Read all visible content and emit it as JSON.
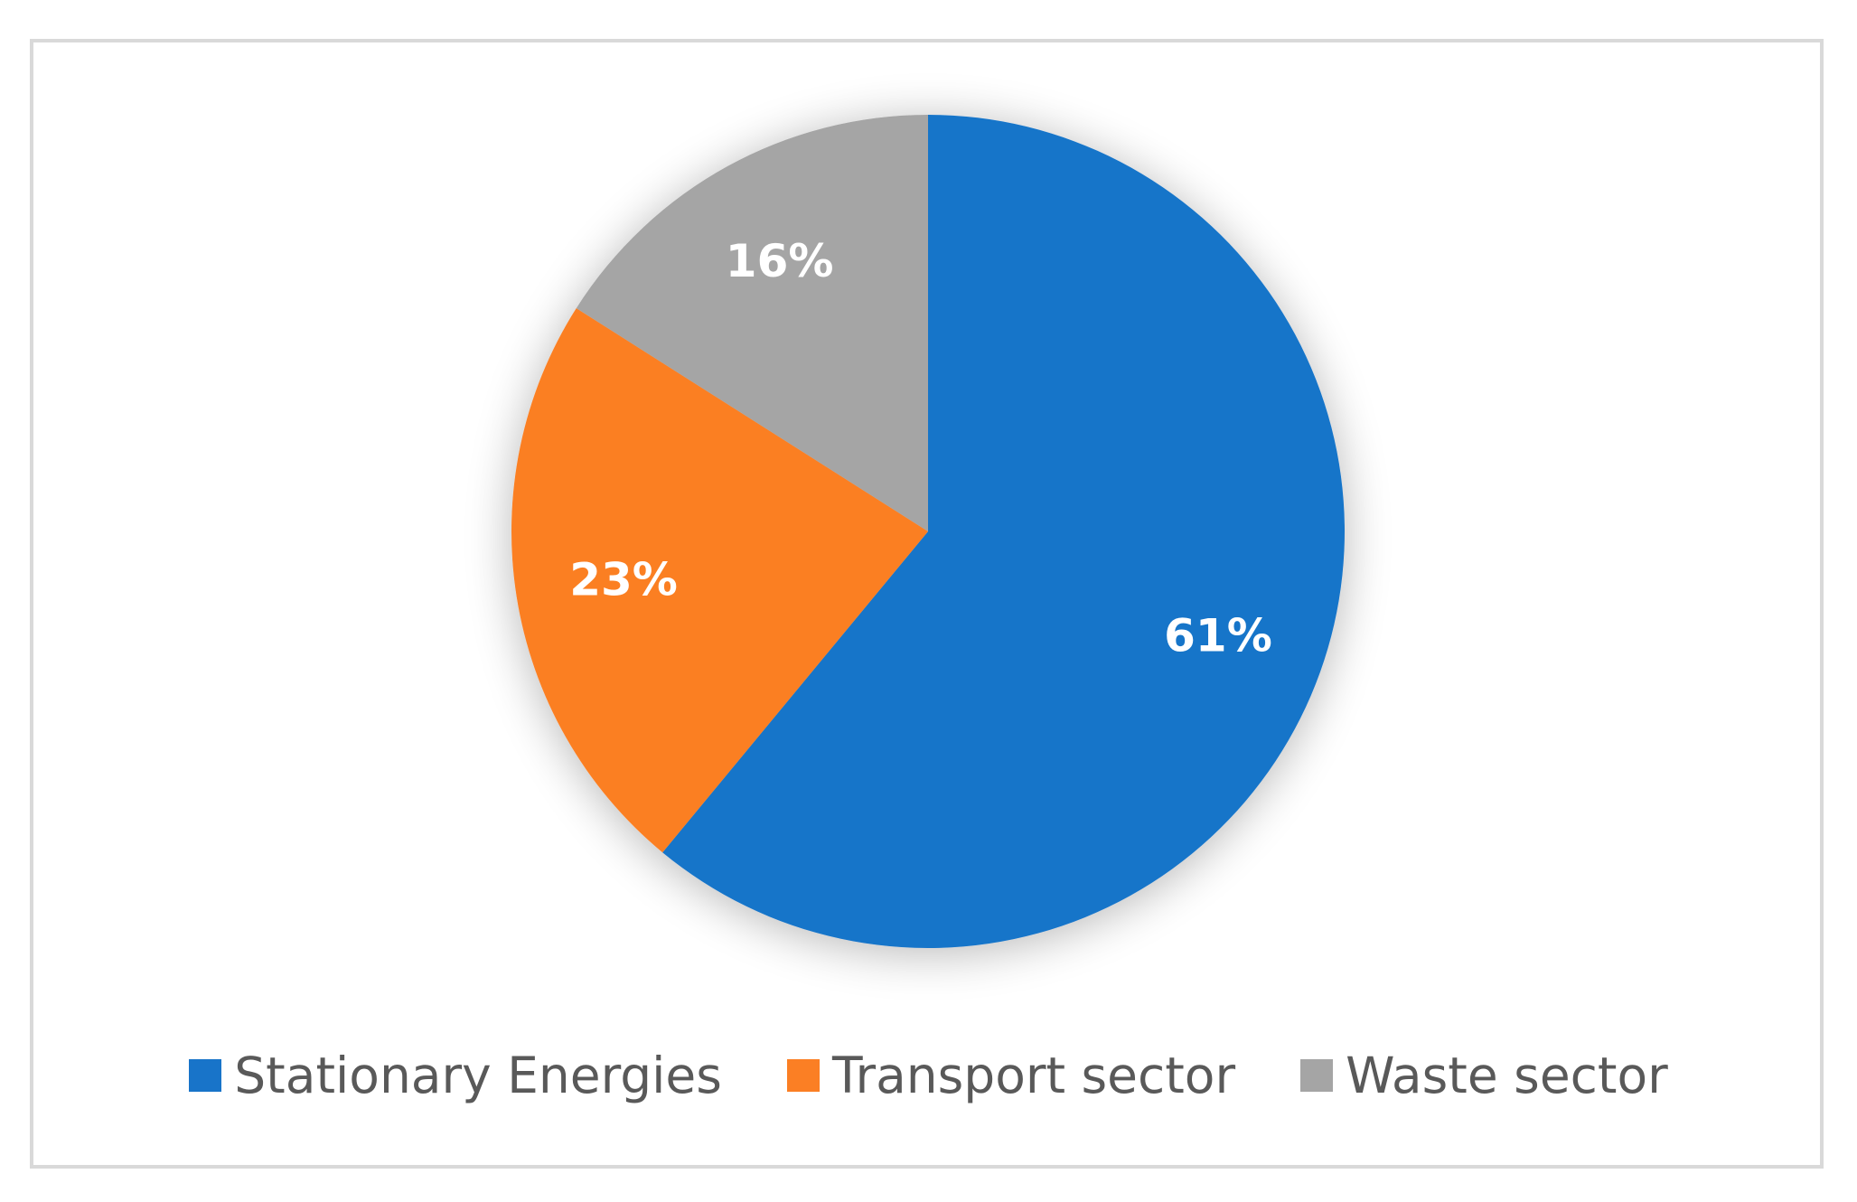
{
  "chart_data": {
    "type": "pie",
    "categories": [
      "Stationary Energies",
      "Transport sector",
      "Waste sector"
    ],
    "values": [
      61,
      23,
      16
    ],
    "data_labels": [
      "61%",
      "23%",
      "16%"
    ],
    "colors": [
      "#1874c9",
      "#fb7f24",
      "#a5a5a5"
    ],
    "title": "",
    "legend_position": "bottom",
    "start_angle": "12 o'clock",
    "direction": "clockwise"
  }
}
